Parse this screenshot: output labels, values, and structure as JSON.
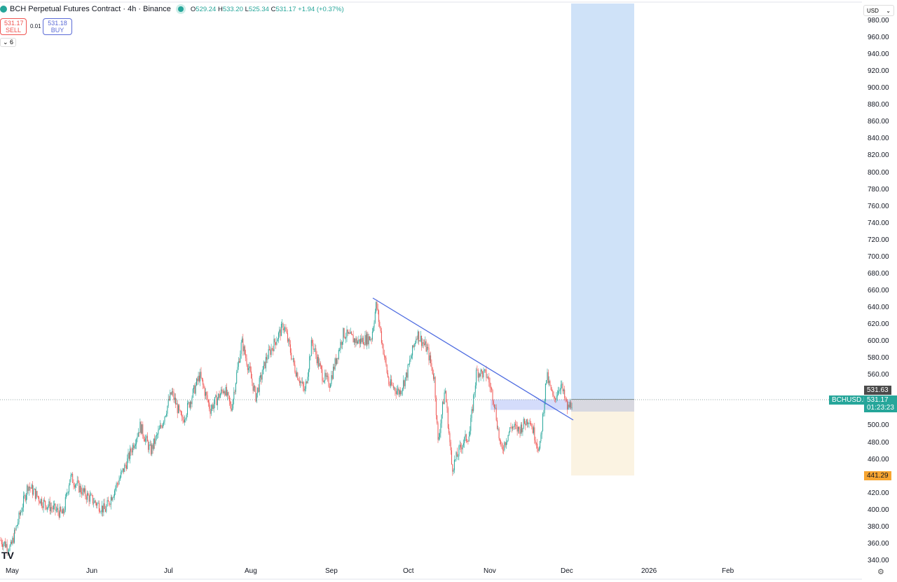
{
  "header": {
    "title": "BCH Perpetual Futures Contract · 4h · Binance",
    "open": "529.24",
    "high": "533.20",
    "low": "525.34",
    "close": "531.17",
    "change": "+1.94 (+0.37%)"
  },
  "trade": {
    "sell_price": "531.17",
    "sell_label": "SELL",
    "spread": "0.01",
    "buy_price": "531.18",
    "buy_label": "BUY"
  },
  "indicators_toggle": "6",
  "currency": "USD",
  "price_axis": [
    "980.00",
    "960.00",
    "940.00",
    "920.00",
    "900.00",
    "880.00",
    "860.00",
    "840.00",
    "820.00",
    "800.00",
    "780.00",
    "760.00",
    "740.00",
    "720.00",
    "700.00",
    "680.00",
    "660.00",
    "640.00",
    "620.00",
    "600.00",
    "580.00",
    "560.00",
    "500.00",
    "480.00",
    "460.00",
    "420.00",
    "400.00",
    "380.00",
    "360.00",
    "340.00"
  ],
  "time_axis": [
    "May",
    "Jun",
    "Jul",
    "Aug",
    "Sep",
    "Oct",
    "Nov",
    "Dec",
    "2026",
    "Feb"
  ],
  "tags": {
    "symbol": "BCHUSD.P",
    "last": "531.17",
    "countdown": "01:23:23",
    "high_marker": "531.63",
    "stop": "441.29"
  },
  "colors": {
    "up": "#26a69a",
    "down": "#ef5350",
    "target": "#cfe2f8",
    "stop": "#fbf3e2",
    "trend": "#4d6be0"
  }
}
